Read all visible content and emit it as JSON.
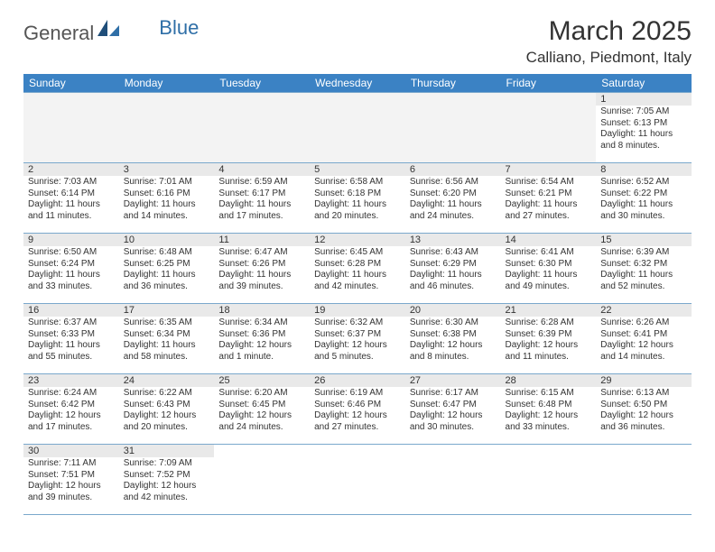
{
  "logo": {
    "part1": "General",
    "part2": "Blue"
  },
  "title": "March 2025",
  "location": "Calliano, Piedmont, Italy",
  "colors": {
    "header_bg": "#3b82c4",
    "header_text": "#ffffff",
    "daynum_bg": "#e9e9e9",
    "border": "#7aa8cc",
    "text": "#333333"
  },
  "weekdays": [
    "Sunday",
    "Monday",
    "Tuesday",
    "Wednesday",
    "Thursday",
    "Friday",
    "Saturday"
  ],
  "weeks": [
    [
      null,
      null,
      null,
      null,
      null,
      null,
      {
        "n": "1",
        "sunrise": "7:05 AM",
        "sunset": "6:13 PM",
        "daylight": "11 hours and 8 minutes."
      }
    ],
    [
      {
        "n": "2",
        "sunrise": "7:03 AM",
        "sunset": "6:14 PM",
        "daylight": "11 hours and 11 minutes."
      },
      {
        "n": "3",
        "sunrise": "7:01 AM",
        "sunset": "6:16 PM",
        "daylight": "11 hours and 14 minutes."
      },
      {
        "n": "4",
        "sunrise": "6:59 AM",
        "sunset": "6:17 PM",
        "daylight": "11 hours and 17 minutes."
      },
      {
        "n": "5",
        "sunrise": "6:58 AM",
        "sunset": "6:18 PM",
        "daylight": "11 hours and 20 minutes."
      },
      {
        "n": "6",
        "sunrise": "6:56 AM",
        "sunset": "6:20 PM",
        "daylight": "11 hours and 24 minutes."
      },
      {
        "n": "7",
        "sunrise": "6:54 AM",
        "sunset": "6:21 PM",
        "daylight": "11 hours and 27 minutes."
      },
      {
        "n": "8",
        "sunrise": "6:52 AM",
        "sunset": "6:22 PM",
        "daylight": "11 hours and 30 minutes."
      }
    ],
    [
      {
        "n": "9",
        "sunrise": "6:50 AM",
        "sunset": "6:24 PM",
        "daylight": "11 hours and 33 minutes."
      },
      {
        "n": "10",
        "sunrise": "6:48 AM",
        "sunset": "6:25 PM",
        "daylight": "11 hours and 36 minutes."
      },
      {
        "n": "11",
        "sunrise": "6:47 AM",
        "sunset": "6:26 PM",
        "daylight": "11 hours and 39 minutes."
      },
      {
        "n": "12",
        "sunrise": "6:45 AM",
        "sunset": "6:28 PM",
        "daylight": "11 hours and 42 minutes."
      },
      {
        "n": "13",
        "sunrise": "6:43 AM",
        "sunset": "6:29 PM",
        "daylight": "11 hours and 46 minutes."
      },
      {
        "n": "14",
        "sunrise": "6:41 AM",
        "sunset": "6:30 PM",
        "daylight": "11 hours and 49 minutes."
      },
      {
        "n": "15",
        "sunrise": "6:39 AM",
        "sunset": "6:32 PM",
        "daylight": "11 hours and 52 minutes."
      }
    ],
    [
      {
        "n": "16",
        "sunrise": "6:37 AM",
        "sunset": "6:33 PM",
        "daylight": "11 hours and 55 minutes."
      },
      {
        "n": "17",
        "sunrise": "6:35 AM",
        "sunset": "6:34 PM",
        "daylight": "11 hours and 58 minutes."
      },
      {
        "n": "18",
        "sunrise": "6:34 AM",
        "sunset": "6:36 PM",
        "daylight": "12 hours and 1 minute."
      },
      {
        "n": "19",
        "sunrise": "6:32 AM",
        "sunset": "6:37 PM",
        "daylight": "12 hours and 5 minutes."
      },
      {
        "n": "20",
        "sunrise": "6:30 AM",
        "sunset": "6:38 PM",
        "daylight": "12 hours and 8 minutes."
      },
      {
        "n": "21",
        "sunrise": "6:28 AM",
        "sunset": "6:39 PM",
        "daylight": "12 hours and 11 minutes."
      },
      {
        "n": "22",
        "sunrise": "6:26 AM",
        "sunset": "6:41 PM",
        "daylight": "12 hours and 14 minutes."
      }
    ],
    [
      {
        "n": "23",
        "sunrise": "6:24 AM",
        "sunset": "6:42 PM",
        "daylight": "12 hours and 17 minutes."
      },
      {
        "n": "24",
        "sunrise": "6:22 AM",
        "sunset": "6:43 PM",
        "daylight": "12 hours and 20 minutes."
      },
      {
        "n": "25",
        "sunrise": "6:20 AM",
        "sunset": "6:45 PM",
        "daylight": "12 hours and 24 minutes."
      },
      {
        "n": "26",
        "sunrise": "6:19 AM",
        "sunset": "6:46 PM",
        "daylight": "12 hours and 27 minutes."
      },
      {
        "n": "27",
        "sunrise": "6:17 AM",
        "sunset": "6:47 PM",
        "daylight": "12 hours and 30 minutes."
      },
      {
        "n": "28",
        "sunrise": "6:15 AM",
        "sunset": "6:48 PM",
        "daylight": "12 hours and 33 minutes."
      },
      {
        "n": "29",
        "sunrise": "6:13 AM",
        "sunset": "6:50 PM",
        "daylight": "12 hours and 36 minutes."
      }
    ],
    [
      {
        "n": "30",
        "sunrise": "7:11 AM",
        "sunset": "7:51 PM",
        "daylight": "12 hours and 39 minutes."
      },
      {
        "n": "31",
        "sunrise": "7:09 AM",
        "sunset": "7:52 PM",
        "daylight": "12 hours and 42 minutes."
      },
      null,
      null,
      null,
      null,
      null
    ]
  ],
  "labels": {
    "sunrise": "Sunrise: ",
    "sunset": "Sunset: ",
    "daylight": "Daylight: "
  }
}
